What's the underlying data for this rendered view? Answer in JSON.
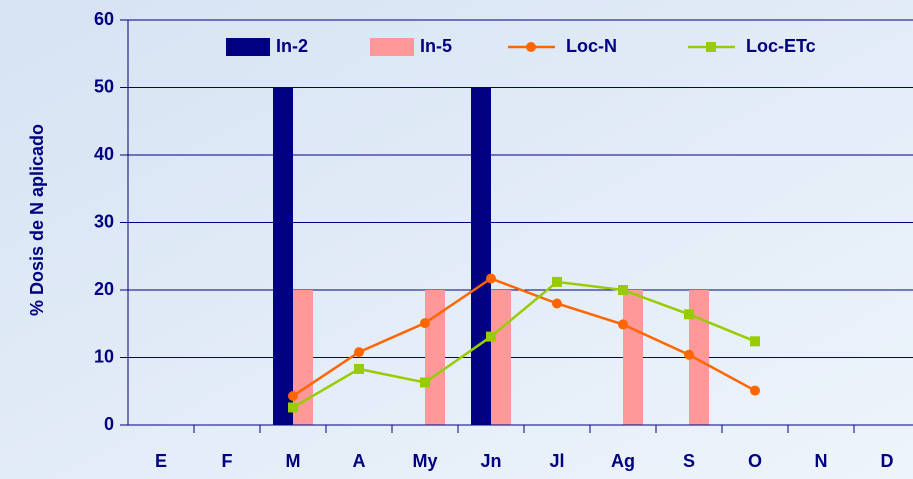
{
  "chart_data": {
    "type": "bar_line",
    "y_label": "% Dosis de N aplicado",
    "categories": [
      "E",
      "F",
      "M",
      "A",
      "My",
      "Jn",
      "Jl",
      "Ag",
      "S",
      "O",
      "N",
      "D"
    ],
    "ylim": [
      0,
      60
    ],
    "yticks": [
      0,
      10,
      20,
      30,
      40,
      50,
      60
    ],
    "grid": true,
    "legend": "top",
    "series": [
      {
        "name": "In-2",
        "kind": "bar",
        "color": "#000080",
        "values": [
          null,
          null,
          50,
          null,
          null,
          50,
          null,
          null,
          null,
          null,
          null,
          null
        ]
      },
      {
        "name": "In-5",
        "kind": "bar",
        "color": "#ff9999",
        "values": [
          null,
          null,
          20,
          null,
          20,
          20,
          null,
          20,
          20,
          null,
          null,
          null
        ]
      },
      {
        "name": "Loc-N",
        "kind": "line",
        "marker": "circle",
        "color": "#ff6600",
        "values": [
          null,
          null,
          4.3,
          10.8,
          15.1,
          21.7,
          18,
          14.9,
          10.4,
          5.1,
          null,
          null
        ]
      },
      {
        "name": "Loc-ETc",
        "kind": "line",
        "marker": "square",
        "color": "#99cc00",
        "values": [
          null,
          null,
          2.6,
          8.3,
          6.3,
          13.1,
          21.2,
          20,
          16.4,
          12.4,
          null,
          null
        ]
      }
    ]
  }
}
